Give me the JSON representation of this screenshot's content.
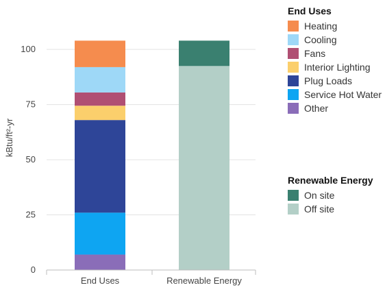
{
  "chart_data": {
    "type": "bar",
    "stacked": true,
    "categories": [
      "End Uses",
      "Renewable Energy"
    ],
    "ylabel": "kBtu/ft²-yr",
    "ylim": [
      0,
      100
    ],
    "yticks": [
      0,
      25,
      50,
      75,
      100
    ],
    "grid": true,
    "legend_placement": "right",
    "legend_groups": [
      {
        "title": "End Uses",
        "items": [
          {
            "name": "Heating",
            "color": "#F58C4E"
          },
          {
            "name": "Cooling",
            "color": "#9ED8F7"
          },
          {
            "name": "Fans",
            "color": "#B04F73"
          },
          {
            "name": "Interior Lighting",
            "color": "#FBCF6C"
          },
          {
            "name": "Plug Loads",
            "color": "#2E4598"
          },
          {
            "name": "Service Hot Water",
            "color": "#0EA5F2"
          },
          {
            "name": "Other",
            "color": "#8A6DB8"
          }
        ]
      },
      {
        "title": "Renewable Energy",
        "items": [
          {
            "name": "On site",
            "color": "#3A8070"
          },
          {
            "name": "Off site",
            "color": "#B3CFC7"
          }
        ]
      }
    ],
    "series": [
      {
        "name": "Other",
        "category": "End Uses",
        "value": 7,
        "color": "#8A6DB8"
      },
      {
        "name": "Service Hot Water",
        "category": "End Uses",
        "value": 19,
        "color": "#0EA5F2"
      },
      {
        "name": "Plug Loads",
        "category": "End Uses",
        "value": 42,
        "color": "#2E4598"
      },
      {
        "name": "Interior Lighting",
        "category": "End Uses",
        "value": 6.5,
        "color": "#FBCF6C"
      },
      {
        "name": "Fans",
        "category": "End Uses",
        "value": 6,
        "color": "#B04F73"
      },
      {
        "name": "Cooling",
        "category": "End Uses",
        "value": 11.5,
        "color": "#9ED8F7"
      },
      {
        "name": "Heating",
        "category": "End Uses",
        "value": 12,
        "color": "#F58C4E"
      },
      {
        "name": "Off site",
        "category": "Renewable Energy",
        "value": 92.5,
        "color": "#B3CFC7"
      },
      {
        "name": "On site",
        "category": "Renewable Energy",
        "value": 11.5,
        "color": "#3A8070"
      }
    ]
  }
}
